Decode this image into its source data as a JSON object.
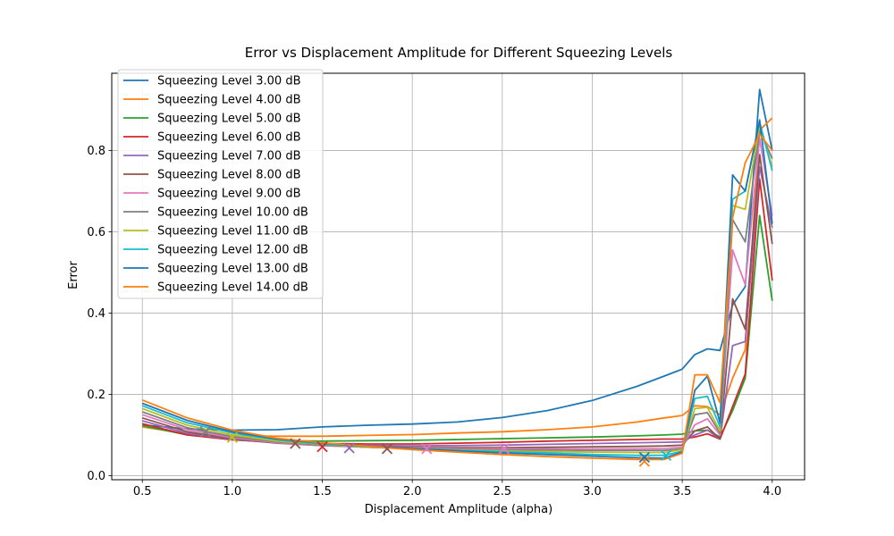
{
  "chart_data": {
    "type": "line",
    "title": "Error vs Displacement Amplitude for Different Squeezing Levels",
    "xlabel": "Displacement Amplitude (alpha)",
    "ylabel": "Error",
    "xlim": [
      0.33,
      4.18
    ],
    "ylim": [
      -0.01,
      0.99
    ],
    "xticks": [
      "0.5",
      "1.0",
      "1.5",
      "2.0",
      "2.5",
      "3.0",
      "3.5",
      "4.0"
    ],
    "yticks": [
      "0.0",
      "0.2",
      "0.4",
      "0.6",
      "0.8"
    ],
    "grid": true,
    "legend_position": "upper-left",
    "x": [
      0.5,
      0.75,
      1.0,
      1.25,
      1.5,
      1.75,
      2.0,
      2.25,
      2.5,
      2.75,
      3.0,
      3.25,
      3.4,
      3.5,
      3.57,
      3.64,
      3.71,
      3.78,
      3.85,
      3.93,
      4.0
    ],
    "series": [
      {
        "name": "Squeezing Level 3.00 dB",
        "color": "#1f77b4",
        "values": [
          0.125,
          0.115,
          0.112,
          0.113,
          0.12,
          0.124,
          0.127,
          0.132,
          0.143,
          0.16,
          0.185,
          0.22,
          0.245,
          0.262,
          0.298,
          0.312,
          0.308,
          0.42,
          0.465,
          0.95,
          0.8
        ]
      },
      {
        "name": "Squeezing Level 4.00 dB",
        "color": "#ff7f0e",
        "values": [
          0.12,
          0.103,
          0.098,
          0.097,
          0.097,
          0.099,
          0.101,
          0.105,
          0.108,
          0.113,
          0.12,
          0.132,
          0.142,
          0.148,
          0.172,
          0.17,
          0.15,
          0.24,
          0.31,
          0.85,
          0.88
        ]
      },
      {
        "name": "Squeezing Level 5.00 dB",
        "color": "#2ca02c",
        "values": [
          0.123,
          0.1,
          0.09,
          0.086,
          0.085,
          0.086,
          0.087,
          0.089,
          0.091,
          0.093,
          0.095,
          0.098,
          0.1,
          0.102,
          0.11,
          0.112,
          0.095,
          0.16,
          0.24,
          0.64,
          0.43
        ]
      },
      {
        "name": "Squeezing Level 6.00 dB",
        "color": "#d62728",
        "values": [
          0.128,
          0.1,
          0.088,
          0.082,
          0.079,
          0.078,
          0.078,
          0.08,
          0.082,
          0.085,
          0.087,
          0.089,
          0.09,
          0.09,
          0.095,
          0.103,
          0.09,
          0.17,
          0.25,
          0.73,
          0.48
        ]
      },
      {
        "name": "Squeezing Level 7.00 dB",
        "color": "#9467bd",
        "values": [
          0.135,
          0.104,
          0.089,
          0.081,
          0.076,
          0.074,
          0.073,
          0.074,
          0.075,
          0.077,
          0.079,
          0.081,
          0.082,
          0.083,
          0.1,
          0.112,
          0.09,
          0.32,
          0.33,
          0.76,
          0.61
        ]
      },
      {
        "name": "Squeezing Level 8.00 dB",
        "color": "#8c564b",
        "values": [
          0.142,
          0.108,
          0.09,
          0.08,
          0.074,
          0.071,
          0.069,
          0.069,
          0.069,
          0.07,
          0.071,
          0.072,
          0.073,
          0.075,
          0.11,
          0.12,
          0.09,
          0.435,
          0.36,
          0.79,
          0.57
        ]
      },
      {
        "name": "Squeezing Level 9.00 dB",
        "color": "#e377c2",
        "values": [
          0.15,
          0.113,
          0.093,
          0.081,
          0.074,
          0.07,
          0.067,
          0.066,
          0.066,
          0.066,
          0.066,
          0.066,
          0.067,
          0.07,
          0.125,
          0.14,
          0.1,
          0.555,
          0.47,
          0.83,
          0.64
        ]
      },
      {
        "name": "Squeezing Level 10.00 dB",
        "color": "#7f7f7f",
        "values": [
          0.157,
          0.118,
          0.096,
          0.083,
          0.075,
          0.07,
          0.066,
          0.064,
          0.063,
          0.063,
          0.062,
          0.062,
          0.062,
          0.066,
          0.15,
          0.155,
          0.105,
          0.63,
          0.575,
          0.85,
          0.78
        ]
      },
      {
        "name": "Squeezing Level 11.00 dB",
        "color": "#bcbd22",
        "values": [
          0.165,
          0.124,
          0.1,
          0.085,
          0.077,
          0.07,
          0.066,
          0.063,
          0.061,
          0.059,
          0.058,
          0.057,
          0.057,
          0.064,
          0.165,
          0.168,
          0.11,
          0.665,
          0.655,
          0.86,
          0.76
        ]
      },
      {
        "name": "Squeezing Level 12.00 dB",
        "color": "#17becf",
        "values": [
          0.172,
          0.13,
          0.105,
          0.088,
          0.078,
          0.071,
          0.066,
          0.062,
          0.059,
          0.056,
          0.052,
          0.05,
          0.05,
          0.06,
          0.19,
          0.195,
          0.12,
          0.68,
          0.7,
          0.87,
          0.75
        ]
      },
      {
        "name": "Squeezing Level 13.00 dB",
        "color": "#1f77b4",
        "values": [
          0.178,
          0.136,
          0.108,
          0.09,
          0.08,
          0.072,
          0.066,
          0.061,
          0.056,
          0.052,
          0.048,
          0.044,
          0.043,
          0.058,
          0.21,
          0.245,
          0.13,
          0.74,
          0.7,
          0.875,
          0.62
        ]
      },
      {
        "name": "Squeezing Level 14.00 dB",
        "color": "#ff7f0e",
        "values": [
          0.186,
          0.142,
          0.112,
          0.092,
          0.081,
          0.072,
          0.064,
          0.058,
          0.052,
          0.047,
          0.043,
          0.04,
          0.04,
          0.055,
          0.248,
          0.248,
          0.18,
          0.635,
          0.77,
          0.84,
          0.8
        ]
      }
    ],
    "markers": {
      "symbol": "x",
      "points": [
        {
          "x": 0.85,
          "y": 0.108,
          "color": "#7f7f7f"
        },
        {
          "x": 1.0,
          "y": 0.094,
          "color": "#bcbd22"
        },
        {
          "x": 1.35,
          "y": 0.079,
          "color": "#8c564b"
        },
        {
          "x": 1.5,
          "y": 0.071,
          "color": "#d62728"
        },
        {
          "x": 1.65,
          "y": 0.068,
          "color": "#9467bd"
        },
        {
          "x": 1.86,
          "y": 0.066,
          "color": "#8c564b"
        },
        {
          "x": 2.08,
          "y": 0.066,
          "color": "#e377c2"
        },
        {
          "x": 2.51,
          "y": 0.066,
          "color": "#e377c2"
        },
        {
          "x": 3.29,
          "y": 0.035,
          "color": "#ff7f0e"
        },
        {
          "x": 3.29,
          "y": 0.045,
          "color": "#1f77b4"
        },
        {
          "x": 3.41,
          "y": 0.05,
          "color": "#17becf"
        }
      ]
    }
  }
}
